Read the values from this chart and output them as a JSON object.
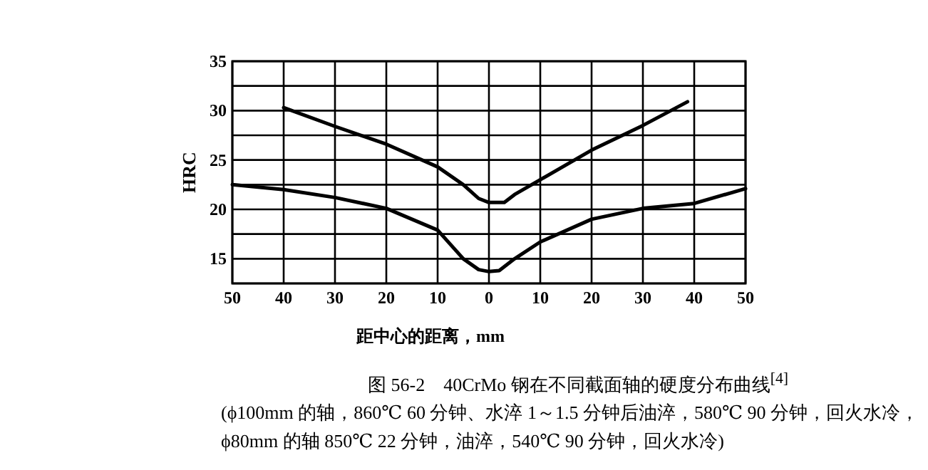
{
  "chart_data": {
    "type": "line",
    "title": "图 56-2　40CrMo 钢在不同截面轴的硬度分布曲线$^{[4]}$",
    "subtitle": "(ϕ100mm 的轴，860℃ 60 分钟、水淬 1～1.5 分钟后油淬，580℃ 90 分钟，回火水冷，ϕ80mm 的轴 850℃ 22 分钟，油淬，540℃ 90 分钟，回火水冷)",
    "xlabel": "距中心的距离，mm",
    "ylabel": "HRC",
    "xlim": [
      -50,
      50
    ],
    "ylim": [
      12.5,
      35
    ],
    "xticks": [
      {
        "value": -50,
        "label": "50"
      },
      {
        "value": -40,
        "label": "40"
      },
      {
        "value": -30,
        "label": "30"
      },
      {
        "value": -20,
        "label": "20"
      },
      {
        "value": -10,
        "label": "10"
      },
      0,
      10,
      20,
      30,
      40,
      50
    ],
    "yticks": [
      {
        "value": 12.5,
        "label": null
      },
      15,
      {
        "value": 17.5,
        "label": null
      },
      20,
      {
        "value": 22.5,
        "label": null
      },
      25,
      {
        "value": 27.5,
        "label": null
      },
      30,
      {
        "value": 32.5,
        "label": null
      },
      35
    ],
    "grid": true,
    "series": [
      {
        "color": "#000000",
        "x": [
          -40,
          -30,
          -20,
          -10,
          -5,
          -2,
          0,
          3,
          5,
          10,
          20,
          30,
          38.7
        ],
        "values": [
          30.3,
          28.4,
          26.6,
          24.3,
          22.5,
          21.1,
          20.7,
          20.7,
          21.5,
          23.0,
          26.0,
          28.5,
          30.9
        ]
      },
      {
        "color": "#000000",
        "x": [
          -50,
          -40,
          -30,
          -20,
          -10,
          -5,
          -2,
          0,
          2,
          5,
          10,
          20,
          30,
          40,
          50
        ],
        "values": [
          22.5,
          22.0,
          21.2,
          20.1,
          17.9,
          15.0,
          13.9,
          13.7,
          13.8,
          15.0,
          16.7,
          19.0,
          20.1,
          20.6,
          22.1
        ]
      }
    ]
  }
}
